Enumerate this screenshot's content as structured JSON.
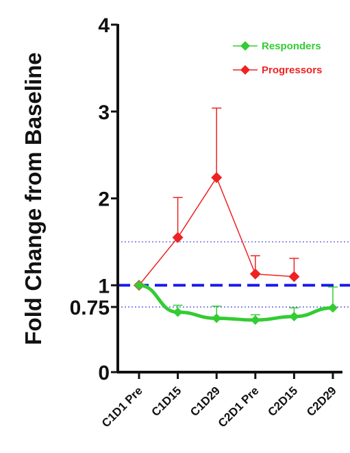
{
  "chart_data": {
    "type": "line",
    "title": "",
    "xlabel": "",
    "ylabel": "Fold Change from Baseline",
    "categories": [
      "C1D1 Pre",
      "C1D15",
      "C1D29",
      "C2D1 Pre",
      "C2D15",
      "C2D29"
    ],
    "ylim": [
      0,
      4
    ],
    "yticks": [
      0,
      0.75,
      1,
      2,
      3,
      4
    ],
    "ytick_labels": [
      "0",
      "0.75",
      "1",
      "2",
      "3",
      "4"
    ],
    "series": [
      {
        "name": "Responders",
        "color": "#33cc33",
        "values": [
          1.0,
          0.69,
          0.62,
          0.6,
          0.64,
          0.74
        ],
        "error_upper": [
          1.0,
          0.77,
          0.76,
          0.66,
          0.74,
          0.98
        ],
        "marker": "diamond"
      },
      {
        "name": "Progressors",
        "color": "#ee2222",
        "values": [
          1.0,
          1.55,
          2.24,
          1.13,
          1.1,
          null
        ],
        "error_upper": [
          1.0,
          2.01,
          3.04,
          1.34,
          1.31,
          null
        ],
        "marker": "diamond"
      }
    ],
    "reference_lines": [
      {
        "y": 1.0,
        "style": "dashed",
        "color": "#1a1aee"
      },
      {
        "y": 1.5,
        "style": "dotted",
        "color": "#5555dd"
      },
      {
        "y": 0.75,
        "style": "dotted",
        "color": "#5555dd"
      }
    ],
    "legend_position": "top-right",
    "grid": false
  }
}
